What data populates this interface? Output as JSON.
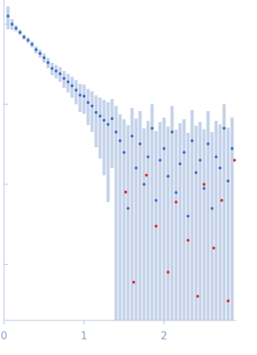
{
  "chart_data": {
    "type": "scatter",
    "log_y": true,
    "xlim": [
      0,
      2.9
    ],
    "xticks": [
      0,
      1,
      2
    ],
    "ylim": [
      0.0002,
      2
    ],
    "yticks": [
      1,
      0.1,
      0.01,
      0.001
    ],
    "error_color": "#c5d3ea",
    "series": [
      {
        "color": "#3f6fc4",
        "x": [
          0.05,
          0.1,
          0.15,
          0.2,
          0.25,
          0.3,
          0.35,
          0.4,
          0.45,
          0.5,
          0.55,
          0.6,
          0.65,
          0.7,
          0.75,
          0.8,
          0.85,
          0.9,
          0.95,
          1.0,
          1.05,
          1.1,
          1.15,
          1.2,
          1.25,
          1.3,
          1.35,
          1.4,
          1.45,
          1.5,
          1.55,
          1.6,
          1.65,
          1.7,
          1.75,
          1.8,
          1.85,
          1.9,
          1.95,
          2.0,
          2.05,
          2.1,
          2.15,
          2.2,
          2.25,
          2.3,
          2.35,
          2.4,
          2.45,
          2.5,
          2.55,
          2.6,
          2.65,
          2.7,
          2.75,
          2.8,
          2.85
        ],
        "values": [
          1.26,
          1.0,
          0.89,
          0.79,
          0.69,
          0.63,
          0.56,
          0.48,
          0.43,
          0.38,
          0.33,
          0.28,
          0.26,
          0.24,
          0.21,
          0.19,
          0.17,
          0.15,
          0.13,
          0.126,
          0.105,
          0.095,
          0.079,
          0.071,
          0.063,
          0.056,
          0.066,
          0.045,
          0.035,
          0.025,
          0.005,
          0.04,
          0.016,
          0.032,
          0.01,
          0.022,
          0.05,
          0.0063,
          0.02,
          0.028,
          0.0126,
          0.045,
          0.0079,
          0.018,
          0.025,
          0.004,
          0.035,
          0.014,
          0.02,
          0.0089,
          0.032,
          0.005,
          0.022,
          0.016,
          0.05,
          0.011,
          0.028
        ],
        "errors": [
          0.4,
          0.15,
          0.08,
          0.06,
          0.05,
          0.05,
          0.05,
          0.05,
          0.05,
          0.05,
          0.05,
          0.05,
          0.05,
          0.05,
          0.05,
          0.05,
          0.05,
          0.05,
          0.05,
          0.05,
          0.05,
          0.05,
          0.05,
          0.05,
          0.05,
          0.05,
          0.05,
          0.05,
          0.04,
          0.04,
          0.05,
          0.05,
          0.05,
          0.05,
          0.04,
          0.04,
          0.05,
          0.04,
          0.04,
          0.04,
          0.04,
          0.05,
          0.04,
          0.04,
          0.04,
          0.04,
          0.05,
          0.04,
          0.04,
          0.04,
          0.05,
          0.04,
          0.04,
          0.04,
          0.05,
          0.04,
          0.04
        ]
      },
      {
        "color": "#d9302c",
        "x": [
          1.52,
          1.62,
          1.78,
          1.9,
          2.05,
          2.15,
          2.3,
          2.42,
          2.5,
          2.62,
          2.72,
          2.8,
          2.88
        ],
        "values": [
          0.008,
          0.0006,
          0.013,
          0.003,
          0.0008,
          0.006,
          0.002,
          0.0004,
          0.01,
          0.0016,
          0.0063,
          0.00035,
          0.02
        ]
      }
    ]
  }
}
